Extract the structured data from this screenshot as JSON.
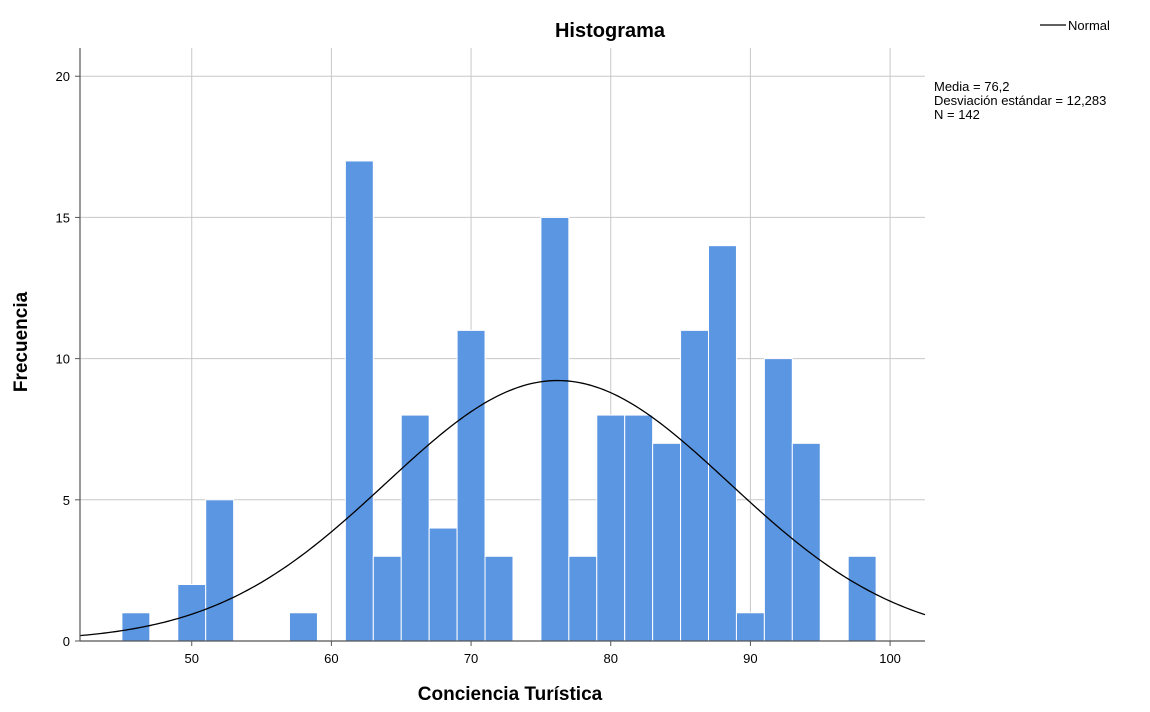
{
  "chart_data": {
    "type": "bar",
    "title": "Histograma",
    "xlabel": "Conciencia Turística",
    "ylabel": "Frecuencia",
    "xlim": [
      42,
      102.5
    ],
    "ylim": [
      0,
      21
    ],
    "x_ticks": [
      50,
      60,
      70,
      80,
      90,
      100
    ],
    "y_ticks": [
      0,
      5,
      10,
      15,
      20
    ],
    "grid": true,
    "bin_width": 2,
    "bins": [
      {
        "start": 45,
        "end": 47,
        "count": 1
      },
      {
        "start": 49,
        "end": 51,
        "count": 2
      },
      {
        "start": 51,
        "end": 53,
        "count": 5
      },
      {
        "start": 57,
        "end": 59,
        "count": 1
      },
      {
        "start": 61,
        "end": 63,
        "count": 17
      },
      {
        "start": 63,
        "end": 65,
        "count": 3
      },
      {
        "start": 65,
        "end": 67,
        "count": 8
      },
      {
        "start": 67,
        "end": 69,
        "count": 4
      },
      {
        "start": 69,
        "end": 71,
        "count": 11
      },
      {
        "start": 71,
        "end": 73,
        "count": 3
      },
      {
        "start": 75,
        "end": 77,
        "count": 15
      },
      {
        "start": 77,
        "end": 79,
        "count": 3
      },
      {
        "start": 79,
        "end": 81,
        "count": 8
      },
      {
        "start": 81,
        "end": 83,
        "count": 8
      },
      {
        "start": 83,
        "end": 85,
        "count": 7
      },
      {
        "start": 85,
        "end": 87,
        "count": 11
      },
      {
        "start": 87,
        "end": 89,
        "count": 14
      },
      {
        "start": 89,
        "end": 91,
        "count": 1
      },
      {
        "start": 91,
        "end": 93,
        "count": 10
      },
      {
        "start": 93,
        "end": 95,
        "count": 7
      },
      {
        "start": 97,
        "end": 99,
        "count": 3
      }
    ],
    "normal_curve": {
      "name": "Normal",
      "mean": 76.2,
      "sd": 12.283,
      "n": 142
    },
    "legend": {
      "position": "top-right",
      "label": "Normal"
    },
    "stats": {
      "line1": "Media = 76,2",
      "line2": "Desviación estándar = 12,283",
      "line3": "N = 142"
    },
    "colors": {
      "bar": "#5b96e3",
      "bar_edge": "#ffffff",
      "curve": "#000000",
      "grid": "#c8c8c8",
      "axis": "#555555"
    }
  }
}
